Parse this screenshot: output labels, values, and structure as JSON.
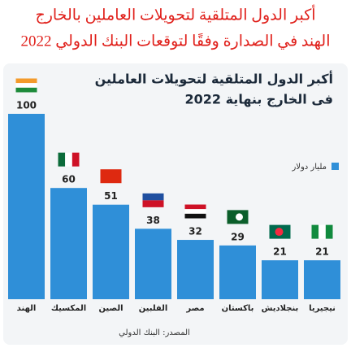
{
  "header": {
    "title": "أكبر الدول المتلقية لتحويلات العاملين بالخارج",
    "subtitle": "الهند في الصدارة وفقًا لتوقعات البنك الدولي 2022"
  },
  "chart_data": {
    "type": "bar",
    "title": "أكبر الدول المتلقية لتحويلات العاملين",
    "subtitle": "فى الخارج بنهاية 2022",
    "categories": [
      "الهند",
      "المكسيك",
      "الصين",
      "الفلبين",
      "مصر",
      "باكستان",
      "بنجلاديش",
      "نيجيريا"
    ],
    "series": [
      {
        "name": "مليار دولار",
        "color": "#2f8fd8",
        "values": [
          100,
          60,
          51,
          38,
          32,
          29,
          21,
          21
        ]
      }
    ],
    "source": "المصدر: البنك الدولي"
  }
}
